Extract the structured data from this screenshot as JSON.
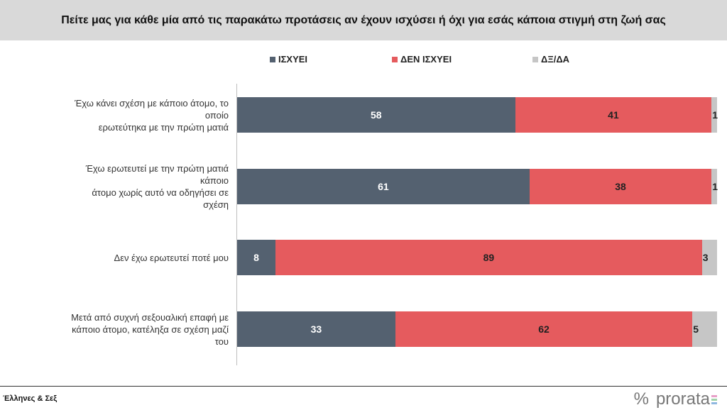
{
  "chart_data": {
    "type": "bar",
    "orientation": "horizontal",
    "stacked": true,
    "title": "Πείτε μας για κάθε μία από τις παρακάτω προτάσεις αν έχουν ισχύσει ή όχι για εσάς κάποια στιγμή στη ζωή σας",
    "categories": [
      [
        "Έχω κάνει σχέση με κάποιο άτομο, το οποίο",
        "ερωτεύτηκα με την πρώτη ματιά"
      ],
      [
        "Έχω ερωτευτεί με την πρώτη ματιά κάποιο",
        "άτομο χωρίς αυτό να οδηγήσει σε σχέση"
      ],
      [
        "Δεν έχω ερωτευτεί ποτέ μου"
      ],
      [
        "Μετά από συχνή σεξουαλική επαφή με",
        "κάποιο άτομο, κατέληξα σε σχέση μαζί του"
      ]
    ],
    "series": [
      {
        "name": "ΙΣΧΥΕΙ",
        "color": "#546170",
        "values": [
          58,
          61,
          8,
          33
        ]
      },
      {
        "name": "ΔΕΝ ΙΣΧΥΕΙ",
        "color": "#e55b5e",
        "values": [
          41,
          38,
          89,
          62
        ]
      },
      {
        "name": "ΔΞ/ΔΑ",
        "color": "#c6c6c6",
        "values": [
          1,
          1,
          3,
          5
        ]
      }
    ],
    "xlim": [
      0,
      100
    ],
    "legend": "top",
    "grid": false
  },
  "footer": {
    "source": "Έλληνες & Σεξ",
    "logo": "prorata",
    "logo_symbol": "%"
  }
}
